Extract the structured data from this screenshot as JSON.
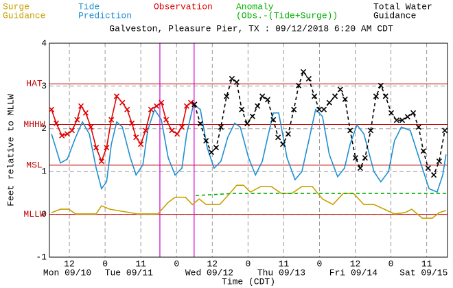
{
  "chart_data": {
    "type": "line",
    "title": "Galveston, Pleasure Pier, TX : 09/12/2018 6:20 AM CDT",
    "xlabel": "Time (CDT)",
    "ylabel": "Feet relative to MLLW",
    "xlim": [
      5.3,
      139
    ],
    "ylim": [
      -1,
      4
    ],
    "yticks": [
      -1,
      0,
      1,
      2,
      3,
      4
    ],
    "xticks": [
      {
        "value": 12,
        "label": "12"
      },
      {
        "value": 24,
        "label": "0"
      },
      {
        "value": 36,
        "label": "11"
      },
      {
        "value": 48,
        "label": "0"
      },
      {
        "value": 60,
        "label": "12"
      },
      {
        "value": 72,
        "label": "0"
      },
      {
        "value": 84,
        "label": "11"
      },
      {
        "value": 96,
        "label": "0"
      },
      {
        "value": 108,
        "label": "12"
      },
      {
        "value": 120,
        "label": "0"
      },
      {
        "value": 132,
        "label": "11"
      }
    ],
    "date_labels": [
      {
        "value": 11.3,
        "label": "Mon 09/10"
      },
      {
        "value": 32,
        "label": "Tue 09/11"
      },
      {
        "value": 59,
        "label": "Wed 09/12"
      },
      {
        "value": 83.2,
        "label": "Thu 09/13"
      },
      {
        "value": 107.4,
        "label": "Fri 09/14"
      },
      {
        "value": 131,
        "label": "Sat 09/15"
      }
    ],
    "grid": true,
    "reference_lines": [
      {
        "label": "HAT",
        "value": 3.05
      },
      {
        "label": "MHHW",
        "value": 2.1
      },
      {
        "label": "MSL",
        "value": 1.15
      },
      {
        "label": "MLLW",
        "value": 0
      }
    ],
    "reference_color": "#c00000",
    "time_markers": [
      42.4,
      53.9
    ],
    "time_marker_color": "#d000d0",
    "series": [
      {
        "name": [
          "Surge",
          "Guidance"
        ],
        "color": "#c8a000",
        "dashed": false,
        "markers": false,
        "x": [
          6.0,
          9.0,
          11.8,
          14.1,
          21.0,
          22.8,
          25.6,
          32.5,
          34.8,
          41.7,
          45.2,
          47.5,
          51.0,
          53.3,
          55.6,
          57.9,
          62.5,
          65.9,
          68.2,
          70.5,
          72.8,
          76.3,
          79.8,
          83.2,
          86.7,
          90.1,
          93.6,
          97.0,
          100.5,
          104.0,
          107.4,
          110.9,
          114.3,
          117.8,
          121.2,
          124.7,
          127.0,
          130.5,
          133.9,
          136.2,
          138.5
        ],
        "values": [
          0.04,
          0.12,
          0.12,
          0.01,
          0.01,
          0.2,
          0.12,
          0.04,
          0.01,
          0.01,
          0.28,
          0.4,
          0.4,
          0.23,
          0.36,
          0.23,
          0.23,
          0.49,
          0.68,
          0.68,
          0.52,
          0.65,
          0.65,
          0.49,
          0.49,
          0.65,
          0.65,
          0.36,
          0.23,
          0.49,
          0.49,
          0.23,
          0.23,
          0.12,
          0.01,
          0.04,
          0.12,
          -0.09,
          -0.09,
          0.04,
          0.09
        ]
      },
      {
        "name": [
          "Tide",
          "Prediction"
        ],
        "color": "#1e8fd0",
        "dashed": false,
        "markers": false,
        "x": [
          6.0,
          9.0,
          11.3,
          14.1,
          16.4,
          18.7,
          21.0,
          22.8,
          24.5,
          26.1,
          27.9,
          29.8,
          32.5,
          34.4,
          36.7,
          38.3,
          40.6,
          42.9,
          45.2,
          47.5,
          49.8,
          51.4,
          53.7,
          56.0,
          58.3,
          60.6,
          62.9,
          65.2,
          67.5,
          69.4,
          72.2,
          74.5,
          76.8,
          78.6,
          80.5,
          82.3,
          85.1,
          87.8,
          90.1,
          92.4,
          94.7,
          97.0,
          99.3,
          102.1,
          104.4,
          106.3,
          108.6,
          110.9,
          114.3,
          116.6,
          119.2,
          121.2,
          123.5,
          126.5,
          129.8,
          132.8,
          135.5,
          137.4,
          138.5
        ],
        "values": [
          1.88,
          1.2,
          1.29,
          1.8,
          2.16,
          1.88,
          1.08,
          0.6,
          0.76,
          1.64,
          2.16,
          2.04,
          1.32,
          0.92,
          1.16,
          1.96,
          2.45,
          2.21,
          1.32,
          0.92,
          1.08,
          1.88,
          2.57,
          2.45,
          1.56,
          1.08,
          1.24,
          1.8,
          2.13,
          2.04,
          1.32,
          0.92,
          1.24,
          1.8,
          2.37,
          2.37,
          1.32,
          0.81,
          1.0,
          1.72,
          2.45,
          2.29,
          1.4,
          0.88,
          1.08,
          1.64,
          2.09,
          1.88,
          1.0,
          0.76,
          1.0,
          1.72,
          2.04,
          1.96,
          1.24,
          0.6,
          0.52,
          0.92,
          1.4
        ]
      },
      {
        "name": [
          "Observation"
        ],
        "color": "#e00000",
        "dashed": false,
        "markers": true,
        "x": [
          6.0,
          7.6,
          9.5,
          11.3,
          12.9,
          14.6,
          15.9,
          17.5,
          19.2,
          21.0,
          22.8,
          24.5,
          26.1,
          27.9,
          29.8,
          31.4,
          33.0,
          34.4,
          36.0,
          37.6,
          39.4,
          41.3,
          42.9,
          44.5,
          46.4,
          48.2,
          49.8,
          51.4,
          52.8,
          54.0
        ],
        "values": [
          2.45,
          2.13,
          1.84,
          1.88,
          1.96,
          2.21,
          2.53,
          2.37,
          2.04,
          1.56,
          1.24,
          1.56,
          2.21,
          2.76,
          2.61,
          2.45,
          2.13,
          1.8,
          1.64,
          1.96,
          2.45,
          2.53,
          2.61,
          2.21,
          1.96,
          1.88,
          2.04,
          2.53,
          2.61,
          2.57
        ]
      },
      {
        "name": [
          "Anomaly",
          "(Obs.-(Tide+Surge))"
        ],
        "color": "#00b000",
        "dashed": true,
        "markers": false,
        "x": [
          54.4,
          62.5,
          67.1,
          138.5
        ],
        "values": [
          0.44,
          0.47,
          0.49,
          0.49
        ]
      },
      {
        "name": [
          "Total Water",
          "Guidance"
        ],
        "color": "#000000",
        "dashed": true,
        "markers": true,
        "x": [
          54.0,
          56.0,
          57.9,
          59.7,
          61.3,
          62.9,
          64.8,
          66.6,
          68.2,
          69.9,
          71.7,
          73.5,
          75.2,
          76.8,
          78.6,
          80.5,
          82.1,
          83.7,
          85.5,
          87.4,
          89.0,
          90.6,
          92.4,
          94.3,
          95.9,
          97.5,
          99.3,
          101.2,
          103.0,
          104.6,
          106.3,
          108.1,
          109.7,
          111.3,
          113.2,
          115.0,
          116.6,
          118.2,
          120.1,
          121.9,
          123.8,
          125.6,
          127.5,
          129.3,
          130.9,
          132.5,
          134.4,
          136.2,
          138.1
        ],
        "values": [
          2.57,
          2.12,
          1.72,
          1.45,
          1.56,
          2.04,
          2.76,
          3.17,
          3.09,
          2.45,
          2.12,
          2.29,
          2.53,
          2.76,
          2.68,
          2.21,
          1.8,
          1.64,
          1.88,
          2.45,
          3.01,
          3.33,
          3.17,
          2.76,
          2.45,
          2.45,
          2.61,
          2.76,
          2.92,
          2.69,
          1.96,
          1.32,
          1.08,
          1.32,
          1.96,
          2.76,
          3.01,
          2.76,
          2.37,
          2.2,
          2.2,
          2.28,
          2.37,
          2.04,
          1.48,
          1.08,
          0.92,
          1.24,
          1.96
        ]
      }
    ]
  }
}
